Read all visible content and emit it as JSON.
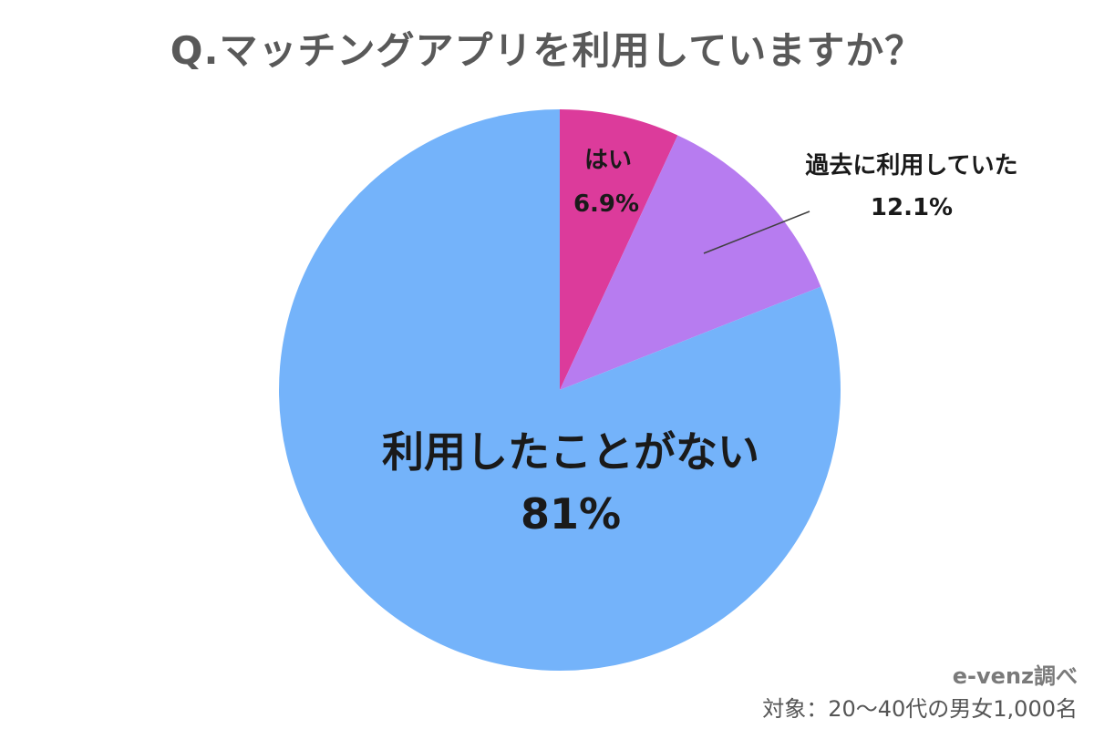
{
  "chart_data": {
    "type": "pie",
    "title": "Q.マッチングアプリを利用していますか？",
    "start": "top",
    "direction": "clockwise",
    "slices": [
      {
        "name": "はい",
        "value": 6.9,
        "label": "6.9%",
        "color": "#dc3b9b"
      },
      {
        "name": "過去に利用していた",
        "value": 12.1,
        "label": "12.1%",
        "color": "#b77cf0"
      },
      {
        "name": "利用したことがない",
        "value": 81,
        "label": "81%",
        "color": "#74b3fa"
      }
    ]
  },
  "footer": {
    "source": "e-venz調べ",
    "target": "対象：20〜40代の男女1,000名"
  }
}
